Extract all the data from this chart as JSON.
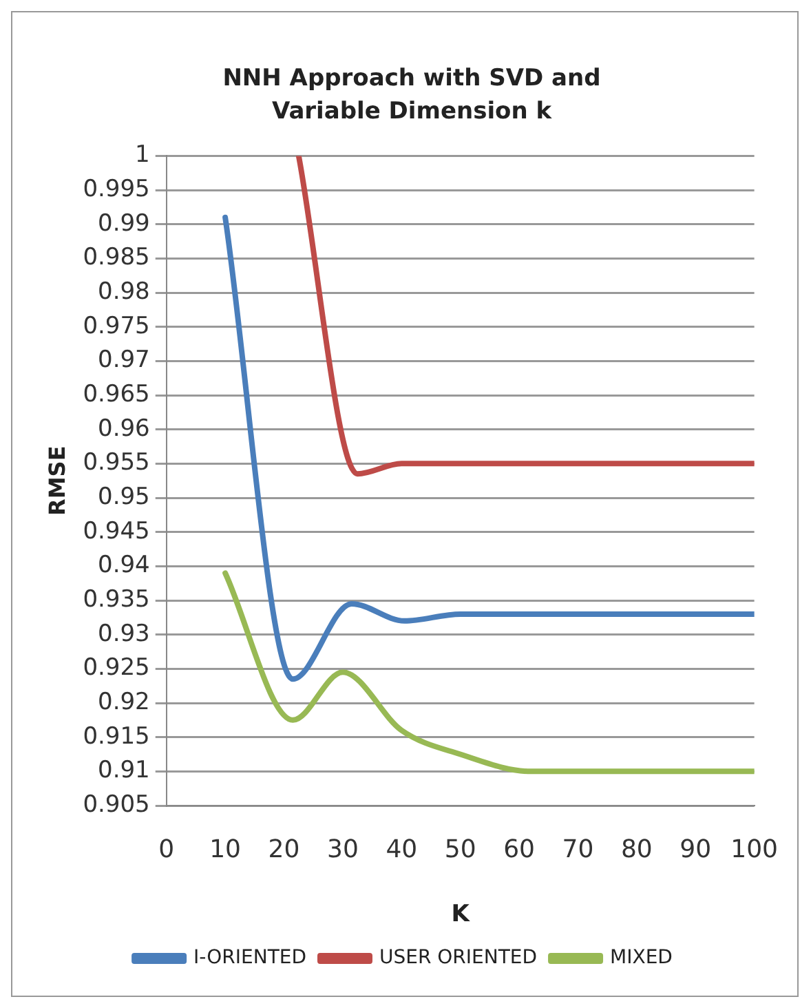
{
  "chart_data": {
    "type": "line",
    "title": "NNH Approach  with SVD and Variable Dimension k",
    "xlabel": "K",
    "ylabel": "RMSE",
    "xlim": [
      0,
      100
    ],
    "xticks": [
      0,
      10,
      20,
      30,
      40,
      50,
      60,
      70,
      80,
      90,
      100
    ],
    "ylim": [
      0.905,
      1
    ],
    "yticks": [
      0.905,
      0.91,
      0.915,
      0.92,
      0.925,
      0.93,
      0.935,
      0.94,
      0.945,
      0.95,
      0.955,
      0.96,
      0.965,
      0.97,
      0.975,
      0.98,
      0.985,
      0.99,
      0.995,
      1
    ],
    "grid": "y",
    "legend": "bottom",
    "marker": "none",
    "line_style": "solid",
    "series": [
      {
        "name": "I-ORIENTED",
        "color": "#4a7ebb",
        "x": [
          10,
          21.5,
          31.5,
          40.5,
          50,
          60,
          70,
          80,
          90,
          100
        ],
        "values": [
          0.991,
          0.9235,
          0.9345,
          0.932,
          0.933,
          0.933,
          0.933,
          0.933,
          0.933,
          0.933
        ]
      },
      {
        "name": "USER ORIENTED",
        "color": "#be4b48",
        "x": [
          22.5,
          32.5,
          40,
          50,
          60,
          70,
          80,
          90,
          100
        ],
        "values": [
          1,
          0.9535,
          0.955,
          0.955,
          0.955,
          0.955,
          0.955,
          0.955,
          0.955
        ]
      },
      {
        "name": "MIXED",
        "color": "#98b954",
        "x": [
          10,
          21.5,
          30,
          40,
          50,
          62,
          70,
          80,
          90,
          100
        ],
        "values": [
          0.939,
          0.9175,
          0.9245,
          0.916,
          0.9125,
          0.91,
          0.91,
          0.91,
          0.91,
          0.91
        ]
      }
    ]
  }
}
